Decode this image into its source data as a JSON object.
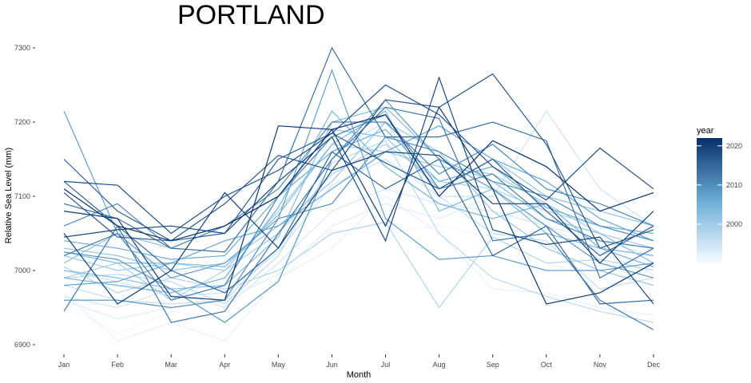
{
  "chart_data": {
    "type": "line",
    "title": "PORTLAND",
    "xlabel": "Month",
    "ylabel": "Relative Sea Level (mm)",
    "categories": [
      "Jan",
      "Feb",
      "Mar",
      "Apr",
      "May",
      "Jun",
      "Jul",
      "Aug",
      "Sep",
      "Oct",
      "Nov",
      "Dec"
    ],
    "yticks": [
      6900,
      7000,
      7100,
      7200,
      7300
    ],
    "ylim": [
      6885,
      7310
    ],
    "legend": {
      "title": "year",
      "ticks": [
        2000,
        2010,
        2020
      ],
      "range": [
        1990,
        2022
      ],
      "placement": "right"
    },
    "colors": {
      "low": "#f7fbff",
      "mid": "#6baed6",
      "high": "#08306b"
    },
    "grid": false,
    "series": [
      {
        "year": 1991,
        "values": [
          6955,
          6915,
          6945,
          6935,
          6985,
          7055,
          7050,
          7060,
          7045,
          7010,
          6990,
          6975
        ]
      },
      {
        "year": 1992,
        "values": [
          6970,
          6905,
          6930,
          6905,
          6990,
          7030,
          7100,
          7050,
          6975,
          6970,
          6950,
          6940
        ]
      },
      {
        "year": 1993,
        "values": [
          6960,
          6935,
          6950,
          6960,
          6995,
          7060,
          7090,
          7070,
          7100,
          7060,
          7025,
          6995
        ]
      },
      {
        "year": 1994,
        "values": [
          6965,
          6950,
          6975,
          6950,
          7010,
          7080,
          7110,
          7090,
          7080,
          7060,
          7040,
          7020
        ]
      },
      {
        "year": 1995,
        "values": [
          7000,
          6985,
          6965,
          6970,
          7025,
          7115,
          7150,
          7100,
          7100,
          7215,
          7110,
          7060
        ]
      },
      {
        "year": 1996,
        "values": [
          6980,
          6960,
          6955,
          6960,
          7030,
          7160,
          7200,
          7100,
          7050,
          7040,
          6975,
          6990
        ]
      },
      {
        "year": 1997,
        "values": [
          6990,
          6995,
          6985,
          6955,
          7020,
          7145,
          7175,
          7050,
          6990,
          6965,
          6945,
          6930
        ]
      },
      {
        "year": 1998,
        "values": [
          7005,
          6970,
          6990,
          6975,
          7000,
          7050,
          7065,
          6950,
          7045,
          7010,
          7015,
          7000
        ]
      },
      {
        "year": 1999,
        "values": [
          6990,
          7010,
          6960,
          7000,
          7050,
          7130,
          7170,
          7120,
          7110,
          7080,
          7060,
          7040
        ]
      },
      {
        "year": 2000,
        "values": [
          7020,
          7000,
          7010,
          7000,
          7080,
          7170,
          7160,
          7140,
          7130,
          7090,
          7050,
          7030
        ]
      },
      {
        "year": 2001,
        "values": [
          7030,
          7020,
          7000,
          7010,
          7060,
          7120,
          7200,
          7160,
          7080,
          7030,
          7000,
          6980
        ]
      },
      {
        "year": 2002,
        "values": [
          7010,
          7050,
          7030,
          7060,
          7100,
          7190,
          7180,
          7110,
          7150,
          7100,
          7080,
          7060
        ]
      },
      {
        "year": 2003,
        "values": [
          7000,
          6990,
          6975,
          6980,
          7045,
          7200,
          7220,
          7150,
          7120,
          7070,
          7050,
          7010
        ]
      },
      {
        "year": 2004,
        "values": [
          7025,
          7010,
          7010,
          7005,
          7075,
          7170,
          7215,
          7080,
          7110,
          7050,
          7030,
          7020
        ]
      },
      {
        "year": 2005,
        "values": [
          6990,
          6980,
          6970,
          6990,
          7085,
          7215,
          7140,
          7090,
          7070,
          7090,
          7030,
          7005
        ]
      },
      {
        "year": 2006,
        "values": [
          7040,
          7030,
          7015,
          7020,
          7100,
          7160,
          7190,
          7120,
          7140,
          7085,
          7060,
          7050
        ]
      },
      {
        "year": 2007,
        "values": [
          6980,
          6985,
          7010,
          7040,
          7060,
          7110,
          7160,
          7195,
          7150,
          7120,
          7070,
          7040
        ]
      },
      {
        "year": 2008,
        "values": [
          7215,
          7050,
          6990,
          7010,
          7070,
          7270,
          7070,
          7015,
          7020,
          7000,
          7000,
          7010
        ]
      },
      {
        "year": 2009,
        "values": [
          7025,
          7015,
          6975,
          6930,
          6985,
          7150,
          7230,
          7150,
          7110,
          7060,
          7010,
          6990
        ]
      },
      {
        "year": 2010,
        "values": [
          6960,
          6960,
          6950,
          6960,
          7070,
          7090,
          7180,
          7160,
          7120,
          7100,
          7060,
          7040
        ]
      },
      {
        "year": 2011,
        "values": [
          7060,
          7090,
          7030,
          7060,
          7110,
          7200,
          7200,
          7130,
          7170,
          7110,
          7090,
          7060
        ]
      },
      {
        "year": 2012,
        "values": [
          7020,
          7050,
          6960,
          6980,
          7100,
          7180,
          7210,
          7110,
          7130,
          7070,
          7040,
          7030
        ]
      },
      {
        "year": 2013,
        "values": [
          6945,
          7060,
          6930,
          6945,
          7050,
          7150,
          7220,
          7205,
          7040,
          7050,
          6960,
          6920
        ]
      },
      {
        "year": 2014,
        "values": [
          7090,
          7070,
          7030,
          7025,
          7120,
          7300,
          7180,
          7180,
          7200,
          7175,
          6990,
          7030
        ]
      },
      {
        "year": 2015,
        "values": [
          7120,
          7060,
          7000,
          6970,
          7030,
          7160,
          7110,
          7150,
          7020,
          7060,
          6955,
          6960
        ]
      },
      {
        "year": 2016,
        "values": [
          7150,
          7080,
          7040,
          7050,
          7150,
          7185,
          7145,
          7110,
          7150,
          7080,
          7020,
          7060
        ]
      },
      {
        "year": 2017,
        "values": [
          7105,
          7045,
          7040,
          7090,
          7155,
          7135,
          7230,
          7220,
          7265,
          7170,
          7030,
          7055
        ]
      },
      {
        "year": 2018,
        "values": [
          7120,
          7115,
          7050,
          7100,
          7135,
          7185,
          7250,
          7210,
          7140,
          7095,
          7165,
          7110
        ]
      },
      {
        "year": 2019,
        "values": [
          7045,
          7055,
          7060,
          7050,
          7120,
          7180,
          7040,
          7260,
          7055,
          7035,
          7045,
          6955
        ]
      },
      {
        "year": 2020,
        "values": [
          7050,
          6955,
          7000,
          7105,
          7030,
          7135,
          7160,
          7155,
          7090,
          7090,
          7010,
          7080
        ]
      },
      {
        "year": 2021,
        "values": [
          7080,
          7070,
          6965,
          6960,
          7195,
          7190,
          7060,
          7220,
          7110,
          6955,
          6970,
          7010
        ]
      },
      {
        "year": 2022,
        "values": [
          7110,
          7060,
          7040,
          7060,
          7100,
          7190,
          7210,
          7100,
          7175,
          7140,
          7080,
          7105
        ]
      }
    ]
  }
}
